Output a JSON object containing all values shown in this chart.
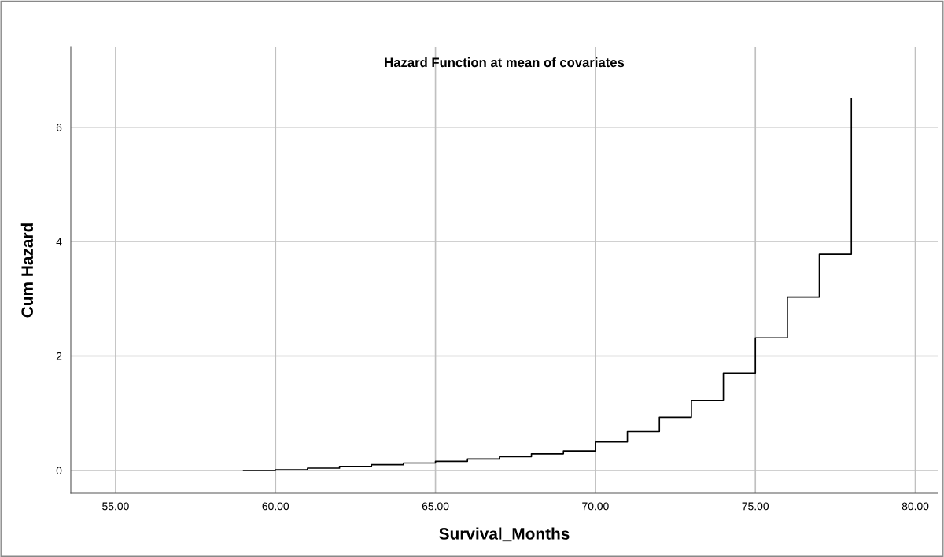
{
  "chart_data": {
    "type": "step",
    "title": "Hazard Function at mean of covariates",
    "xlabel": "Survival_Months",
    "ylabel": "Cum Hazard",
    "x": [
      59,
      60,
      61,
      62,
      63,
      64,
      65,
      66,
      67,
      68,
      69,
      70,
      71,
      72,
      73,
      74,
      75,
      76,
      77,
      78,
      78
    ],
    "series": [
      {
        "color": "#000000",
        "values": [
          0.0,
          0.01,
          0.04,
          0.07,
          0.1,
          0.13,
          0.16,
          0.2,
          0.24,
          0.29,
          0.34,
          0.5,
          0.68,
          0.93,
          1.22,
          1.7,
          2.32,
          3.03,
          3.78,
          3.78,
          6.5
        ]
      }
    ],
    "xlim": [
      53.6,
      80.7
    ],
    "ylim": [
      -0.4,
      7.4
    ],
    "xticks": [
      {
        "value": 55,
        "label": "55.00"
      },
      {
        "value": 60,
        "label": "60.00"
      },
      {
        "value": 65,
        "label": "65.00"
      },
      {
        "value": 70,
        "label": "70.00"
      },
      {
        "value": 75,
        "label": "75.00"
      },
      {
        "value": 80,
        "label": "80.00"
      }
    ],
    "yticks": [
      0,
      2,
      4,
      6
    ],
    "grid": true,
    "legend": false,
    "marker": "none",
    "line_style": "solid"
  }
}
